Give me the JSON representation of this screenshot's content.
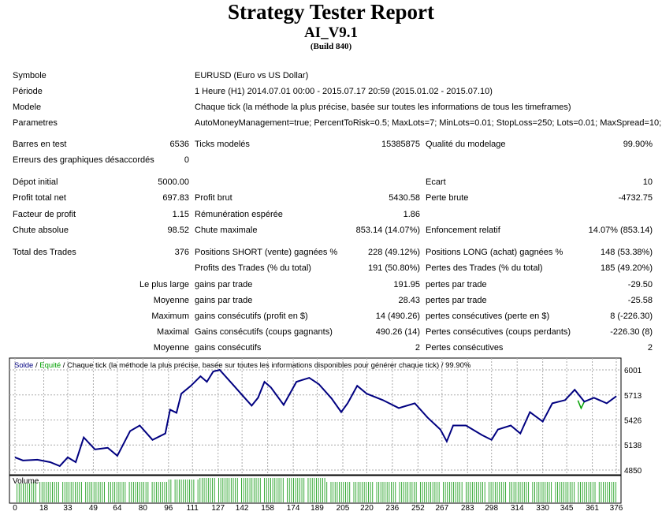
{
  "header": {
    "title": "Strategy Tester Report",
    "expert": "AI_V9.1",
    "build": "(Build 840)"
  },
  "info": [
    {
      "label": "Symbole",
      "value": "EURUSD (Euro vs US Dollar)"
    },
    {
      "label": "Période",
      "value": "1 Heure (H1) 2014.07.01 00:00 - 2015.07.17 20:59 (2015.01.02 - 2015.07.10)"
    },
    {
      "label": "Modele",
      "value": "Chaque tick (la méthode la plus précise, basée sur toutes les informations de tous les timeframes)"
    },
    {
      "label": "Parametres",
      "value": "AutoMoneyManagement=true; PercentToRisk=0.5; MaxLots=7; MinLots=0.01; StopLoss=250; Lots=0.01; MaxSpread=10;"
    }
  ],
  "stats": [
    [
      "Barres en test",
      "6536",
      "Ticks modelés",
      "15385875",
      "Qualité du modelage",
      "99.90%"
    ],
    [
      "Erreurs des graphiques désaccordés",
      "0",
      "",
      "",
      "",
      ""
    ],
    [
      "Dépot initial",
      "5000.00",
      "",
      "",
      "Ecart",
      "10"
    ],
    [
      "Profit total net",
      "697.83",
      "Profit brut",
      "5430.58",
      "Perte brute",
      "-4732.75"
    ],
    [
      "Facteur de profit",
      "1.15",
      "Rémunération espérée",
      "1.86",
      "",
      ""
    ],
    [
      "Chute absolue",
      "98.52",
      "Chute maximale",
      "853.14 (14.07%)",
      "Enfoncement relatif",
      "14.07% (853.14)"
    ],
    [
      "Total des Trades",
      "376",
      "Positions SHORT (vente) gagnées %",
      "228 (49.12%)",
      "Positions LONG (achat) gagnées %",
      "148 (53.38%)"
    ],
    [
      "",
      "",
      "Profits des Trades (% du total)",
      "191 (50.80%)",
      "Pertes des Trades (% du total)",
      "185 (49.20%)"
    ],
    [
      "",
      "Le plus large",
      "gains par trade",
      "191.95",
      "pertes par trade",
      "-29.50"
    ],
    [
      "",
      "Moyenne",
      "gains par trade",
      "28.43",
      "pertes par trade",
      "-25.58"
    ],
    [
      "",
      "Maximum",
      "gains consécutifs (profit en $)",
      "14 (490.26)",
      "pertes consécutives (perte en $)",
      "8 (-226.30)"
    ],
    [
      "",
      "Maximal",
      "Gains consécutifs (coups gagnants)",
      "490.26 (14)",
      "Pertes consécutives (coups perdants)",
      "-226.30 (8)"
    ],
    [
      "",
      "Moyenne",
      "gains consécutifs",
      "2",
      "Pertes consécutives",
      "2"
    ]
  ],
  "chart_data": {
    "type": "line",
    "legend": {
      "balance": "Solde",
      "sep1": " / ",
      "equity": "Equité",
      "rest": " / Chaque tick (la méthode la plus précise, basée sur toutes les informations disponibles pour générer chaque tick) / 99.90%"
    },
    "volume_label": "Volume",
    "y_ticks": [
      6001,
      5713,
      5426,
      5138,
      4850
    ],
    "x_ticks": [
      0,
      18,
      33,
      49,
      64,
      80,
      96,
      111,
      127,
      142,
      158,
      174,
      189,
      205,
      220,
      236,
      252,
      267,
      283,
      298,
      314,
      330,
      345,
      361,
      376
    ],
    "ylim": [
      4850,
      6001
    ],
    "xlim": [
      0,
      376
    ],
    "balance": [
      [
        0,
        4996
      ],
      [
        5,
        4960
      ],
      [
        14,
        4969
      ],
      [
        22,
        4941
      ],
      [
        28,
        4896
      ],
      [
        33,
        4996
      ],
      [
        38,
        4941
      ],
      [
        43,
        5225
      ],
      [
        50,
        5087
      ],
      [
        58,
        5106
      ],
      [
        64,
        5014
      ],
      [
        72,
        5298
      ],
      [
        78,
        5362
      ],
      [
        86,
        5197
      ],
      [
        94,
        5270
      ],
      [
        97,
        5544
      ],
      [
        101,
        5508
      ],
      [
        104,
        5727
      ],
      [
        110,
        5818
      ],
      [
        116,
        5928
      ],
      [
        120,
        5864
      ],
      [
        124,
        5983
      ],
      [
        128,
        6001
      ],
      [
        136,
        5837
      ],
      [
        144,
        5672
      ],
      [
        148,
        5590
      ],
      [
        152,
        5681
      ],
      [
        156,
        5864
      ],
      [
        160,
        5800
      ],
      [
        168,
        5599
      ],
      [
        176,
        5864
      ],
      [
        184,
        5910
      ],
      [
        190,
        5837
      ],
      [
        198,
        5672
      ],
      [
        204,
        5516
      ],
      [
        208,
        5617
      ],
      [
        214,
        5818
      ],
      [
        220,
        5727
      ],
      [
        230,
        5654
      ],
      [
        240,
        5562
      ],
      [
        250,
        5617
      ],
      [
        258,
        5453
      ],
      [
        266,
        5316
      ],
      [
        270,
        5179
      ],
      [
        274,
        5362
      ],
      [
        282,
        5362
      ],
      [
        292,
        5252
      ],
      [
        298,
        5197
      ],
      [
        302,
        5316
      ],
      [
        310,
        5362
      ],
      [
        316,
        5270
      ],
      [
        322,
        5516
      ],
      [
        330,
        5407
      ],
      [
        336,
        5617
      ],
      [
        344,
        5654
      ],
      [
        350,
        5773
      ],
      [
        356,
        5636
      ],
      [
        362,
        5681
      ],
      [
        370,
        5617
      ],
      [
        376,
        5698
      ]
    ],
    "equity_dip": [
      [
        352,
        5650
      ],
      [
        354,
        5560
      ],
      [
        356,
        5636
      ]
    ],
    "colors": {
      "balance": "#000080",
      "equity": "#00a000",
      "volume": "#22a022"
    }
  }
}
